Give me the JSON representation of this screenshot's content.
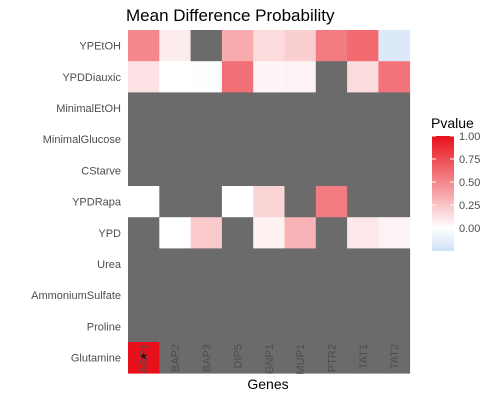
{
  "chart_data": {
    "type": "heatmap",
    "title": "Mean Difference Probability",
    "xlabel": "Genes",
    "x_categories": [
      "AGP1",
      "BAP2",
      "BAP3",
      "DIP5",
      "GNP1",
      "MUP1",
      "PTR2",
      "TAT1",
      "TAT2"
    ],
    "y_categories": [
      "YPEtOH",
      "YPDDiauxic",
      "MinimalEtOH",
      "MinimalGlucose",
      "CStarve",
      "YPDRapa",
      "YPD",
      "Urea",
      "AmmoniumSulfate",
      "Proline",
      "Glutamine"
    ],
    "values": [
      [
        0.5,
        0.08,
        null,
        0.35,
        0.15,
        0.2,
        0.55,
        0.62,
        -0.18
      ],
      [
        0.12,
        0.0,
        -0.02,
        0.6,
        0.04,
        0.05,
        null,
        0.15,
        0.58
      ],
      [
        null,
        null,
        null,
        null,
        null,
        null,
        null,
        null,
        null
      ],
      [
        null,
        null,
        null,
        null,
        null,
        null,
        null,
        null,
        null
      ],
      [
        null,
        null,
        null,
        null,
        null,
        null,
        null,
        null,
        null
      ],
      [
        0.0,
        null,
        null,
        0.0,
        0.18,
        null,
        0.55,
        null,
        null
      ],
      [
        null,
        0.0,
        0.22,
        null,
        0.06,
        0.32,
        null,
        0.1,
        0.05
      ],
      [
        null,
        null,
        null,
        null,
        null,
        null,
        null,
        null,
        null
      ],
      [
        null,
        null,
        null,
        null,
        null,
        null,
        null,
        null,
        null
      ],
      [
        null,
        null,
        null,
        null,
        null,
        null,
        null,
        null,
        null
      ],
      [
        1.0,
        null,
        null,
        null,
        null,
        null,
        null,
        null,
        null
      ]
    ],
    "na_color": "#6b6b6b",
    "annotations": [
      {
        "row": "Glutamine",
        "col": "AGP1",
        "text": "*"
      }
    ],
    "legend": {
      "title": "Pvalue",
      "ticks": [
        "1.00",
        "0.75",
        "0.50",
        "0.25",
        "0.00"
      ],
      "range": [
        -0.25,
        1.0
      ],
      "low_color": "#cfe0f7",
      "mid_color": "#ffffff",
      "high_color": "#e8101a",
      "placement": "right"
    },
    "grid": false
  }
}
